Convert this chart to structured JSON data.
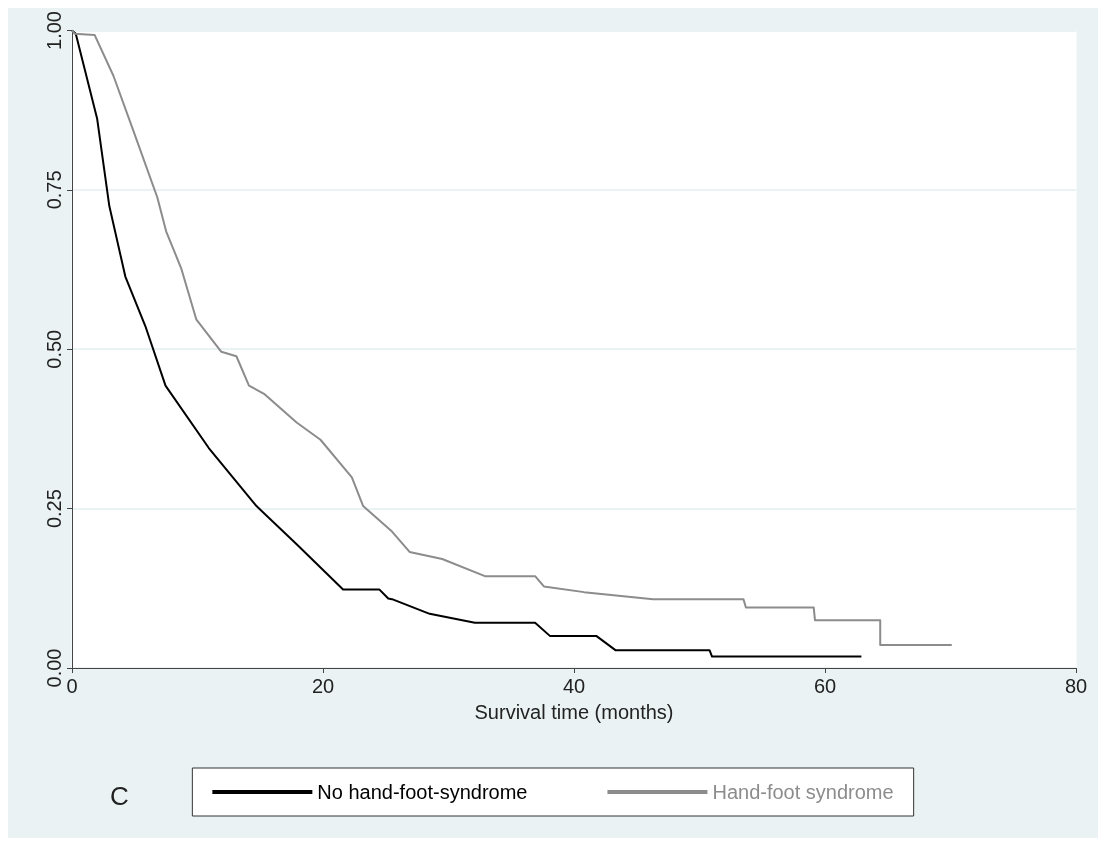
{
  "chart_data": {
    "type": "line",
    "xlabel": "Survival time (months)",
    "xlim": [
      0,
      80
    ],
    "xticks": [
      0,
      20,
      40,
      60,
      80
    ],
    "ylim": [
      0,
      1
    ],
    "yticks": [
      {
        "value": 0,
        "label": "0.00"
      },
      {
        "value": 0.25,
        "label": "0.25"
      },
      {
        "value": 0.5,
        "label": "0.50"
      },
      {
        "value": 0.75,
        "label": "0.75"
      },
      {
        "value": 1,
        "label": "1.00"
      }
    ],
    "grid": "y",
    "legend": "bottom",
    "line_style": "solid",
    "marker": "none",
    "annotations": [
      "C"
    ],
    "series": [
      {
        "name": "No hand-foot-syndrome",
        "color": "#000000",
        "x": [
          0,
          0.3,
          2.0,
          2.97,
          4.25,
          5.85,
          7.45,
          10.9,
          14.7,
          17.9,
          21.6,
          24.5,
          25.2,
          25.5,
          28.5,
          32.1,
          36.9,
          38.1,
          41.8,
          43.3,
          50.8,
          51.0,
          62.9
        ],
        "values": [
          1,
          0.995,
          0.862,
          0.725,
          0.614,
          0.536,
          0.443,
          0.345,
          0.254,
          0.194,
          0.123,
          0.123,
          0.109,
          0.108,
          0.085,
          0.071,
          0.071,
          0.05,
          0.05,
          0.028,
          0.028,
          0.018,
          0.018
        ]
      },
      {
        "name": "Hand-foot syndrome",
        "color": "#8c8c8c",
        "x": [
          0,
          0.2,
          1.8,
          3.3,
          4.9,
          6.8,
          7.5,
          8.7,
          9.9,
          11.9,
          13.1,
          14.1,
          15.3,
          17.9,
          19.8,
          22.3,
          23.2,
          25.5,
          26.9,
          29.5,
          32.9,
          36.9,
          37.6,
          40.8,
          46.3,
          53.5,
          53.7,
          59.1,
          59.2,
          64.4,
          64.4,
          70.1
        ],
        "values": [
          1,
          0.995,
          0.993,
          0.929,
          0.842,
          0.738,
          0.685,
          0.627,
          0.547,
          0.496,
          0.489,
          0.443,
          0.43,
          0.385,
          0.358,
          0.299,
          0.254,
          0.214,
          0.182,
          0.171,
          0.144,
          0.144,
          0.128,
          0.119,
          0.108,
          0.108,
          0.095,
          0.095,
          0.075,
          0.075,
          0.036,
          0.036
        ]
      }
    ]
  }
}
